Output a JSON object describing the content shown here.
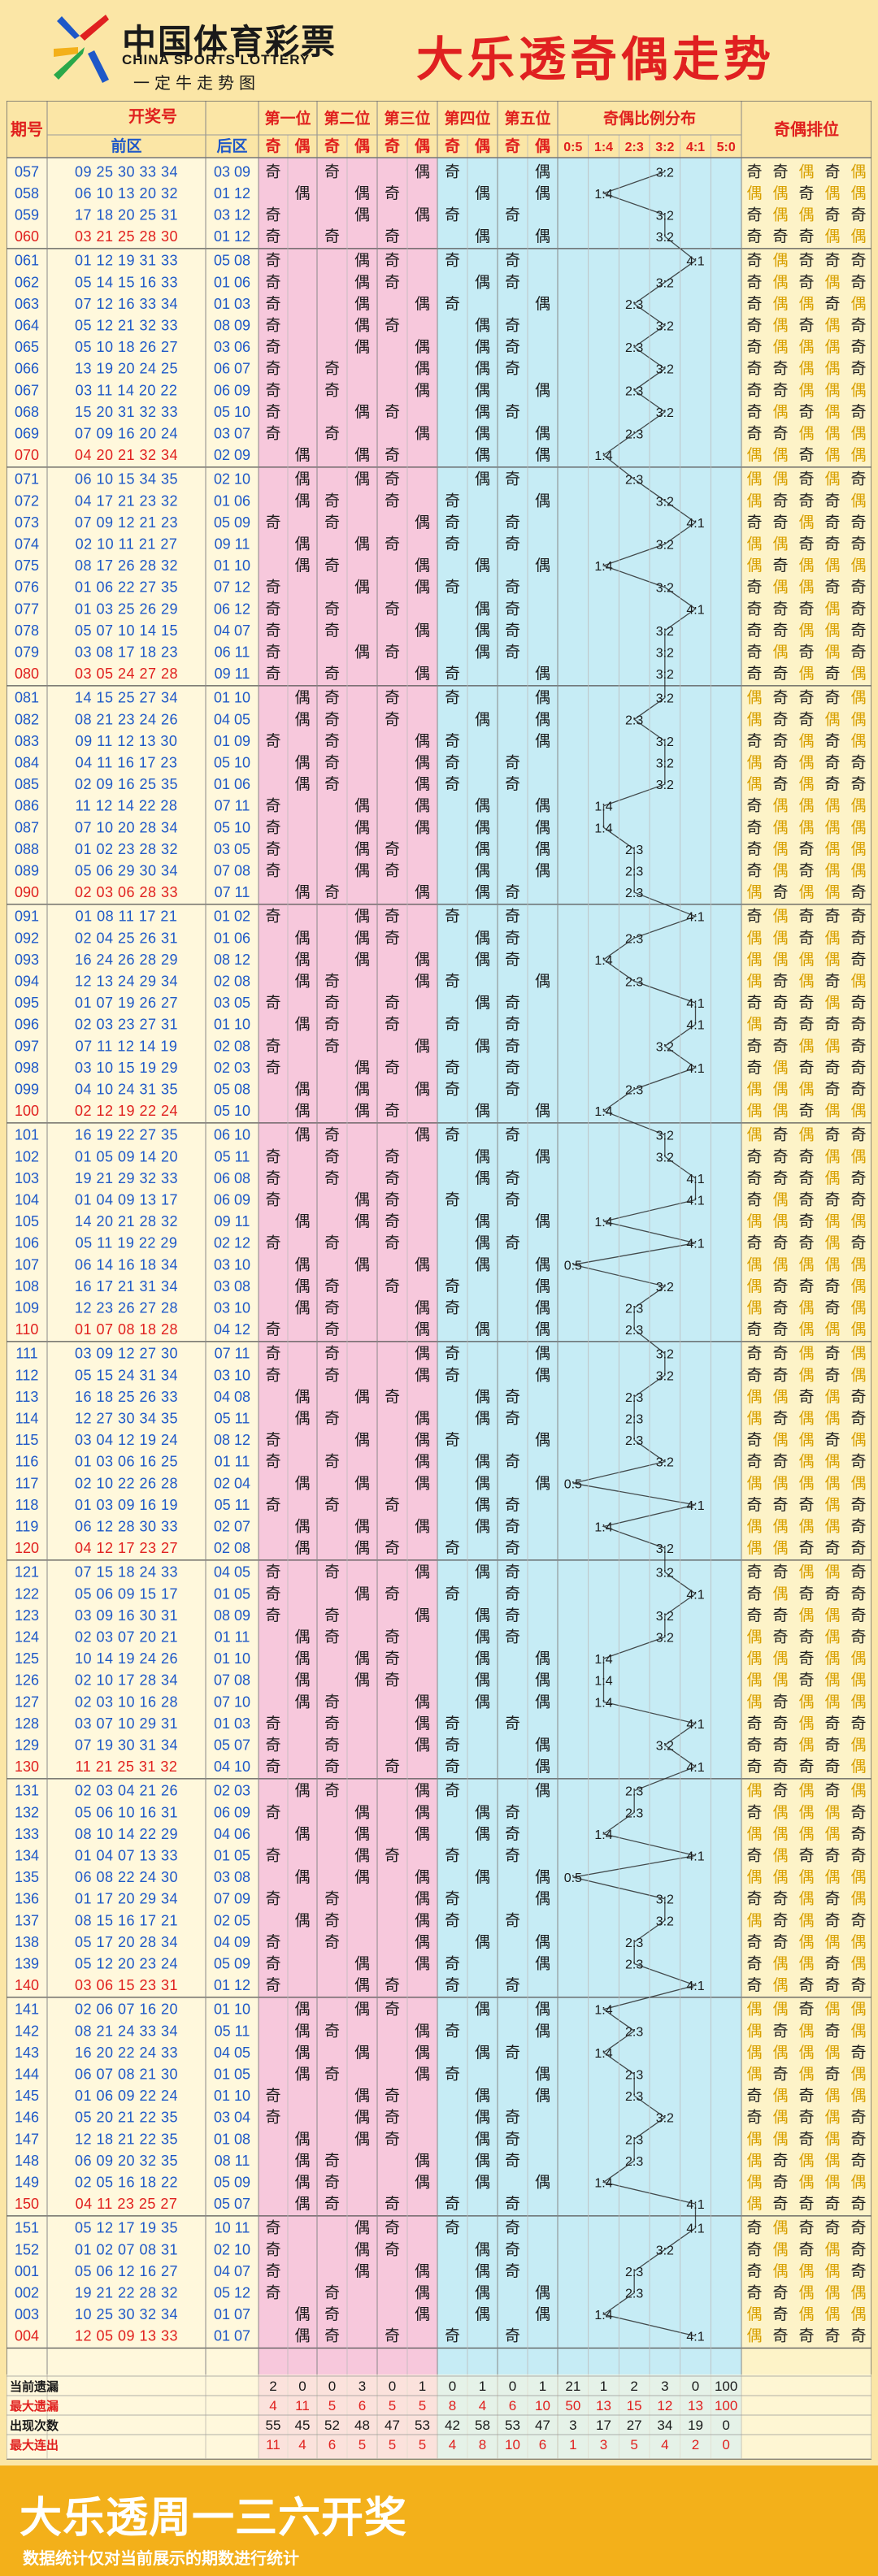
{
  "header": {
    "logo_cn": "中国体育彩票",
    "logo_en": "CHINA SPORTS LOTTERY",
    "slogan": "一定牛走势图",
    "title": "大乐透奇偶走势"
  },
  "table": {
    "col_issue": "期号",
    "col_draw": "开奖号",
    "col_front": "前区",
    "col_back": "后区",
    "positions": [
      "第一位",
      "第二位",
      "第三位",
      "第四位",
      "第五位"
    ],
    "odd": "奇",
    "even": "偶",
    "col_ratio": "奇偶比例分布",
    "ratios": [
      "0:5",
      "1:4",
      "2:3",
      "3:2",
      "4:1",
      "5:0"
    ],
    "col_order": "奇偶排位"
  },
  "chart_data": {
    "type": "table",
    "draws": [
      [
        "057",
        "09 25 30 33 34",
        "03 09"
      ],
      [
        "058",
        "06 10 13 20 32",
        "01 12"
      ],
      [
        "059",
        "17 18 20 25 31",
        "03 12"
      ],
      [
        "060",
        "03 21 25 28 30",
        "01 12"
      ],
      [
        "061",
        "01 12 19 31 33",
        "05 08"
      ],
      [
        "062",
        "05 14 15 16 33",
        "01 06"
      ],
      [
        "063",
        "07 12 16 33 34",
        "01 03"
      ],
      [
        "064",
        "05 12 21 32 33",
        "08 09"
      ],
      [
        "065",
        "05 10 18 26 27",
        "03 06"
      ],
      [
        "066",
        "13 19 20 24 25",
        "06 07"
      ],
      [
        "067",
        "03 11 14 20 22",
        "06 09"
      ],
      [
        "068",
        "15 20 31 32 33",
        "05 10"
      ],
      [
        "069",
        "07 09 16 20 24",
        "03 07"
      ],
      [
        "070",
        "04 20 21 32 34",
        "02 09"
      ],
      [
        "071",
        "06 10 15 34 35",
        "02 10"
      ],
      [
        "072",
        "04 17 21 23 32",
        "01 06"
      ],
      [
        "073",
        "07 09 12 21 23",
        "05 09"
      ],
      [
        "074",
        "02 10 11 21 27",
        "09 11"
      ],
      [
        "075",
        "08 17 26 28 32",
        "01 10"
      ],
      [
        "076",
        "01 06 22 27 35",
        "07 12"
      ],
      [
        "077",
        "01 03 25 26 29",
        "06 12"
      ],
      [
        "078",
        "05 07 10 14 15",
        "04 07"
      ],
      [
        "079",
        "03 08 17 18 23",
        "06 11"
      ],
      [
        "080",
        "03 05 24 27 28",
        "09 11"
      ],
      [
        "081",
        "14 15 25 27 34",
        "01 10"
      ],
      [
        "082",
        "08 21 23 24 26",
        "04 05"
      ],
      [
        "083",
        "09 11 12 13 30",
        "01 09"
      ],
      [
        "084",
        "04 11 16 17 23",
        "05 10"
      ],
      [
        "085",
        "02 09 16 25 35",
        "01 06"
      ],
      [
        "086",
        "11 12 14 22 28",
        "07 11"
      ],
      [
        "087",
        "07 10 20 28 34",
        "05 10"
      ],
      [
        "088",
        "01 02 23 28 32",
        "03 05"
      ],
      [
        "089",
        "05 06 29 30 34",
        "07 08"
      ],
      [
        "090",
        "02 03 06 28 33",
        "07 11"
      ],
      [
        "091",
        "01 08 11 17 21",
        "01 02"
      ],
      [
        "092",
        "02 04 25 26 31",
        "01 06"
      ],
      [
        "093",
        "16 24 26 28 29",
        "08 12"
      ],
      [
        "094",
        "12 13 24 29 34",
        "02 08"
      ],
      [
        "095",
        "01 07 19 26 27",
        "03 05"
      ],
      [
        "096",
        "02 03 23 27 31",
        "01 10"
      ],
      [
        "097",
        "07 11 12 14 19",
        "02 08"
      ],
      [
        "098",
        "03 10 15 19 29",
        "02 03"
      ],
      [
        "099",
        "04 10 24 31 35",
        "05 08"
      ],
      [
        "100",
        "02 12 19 22 24",
        "05 10"
      ],
      [
        "101",
        "16 19 22 27 35",
        "06 10"
      ],
      [
        "102",
        "01 05 09 14 20",
        "05 11"
      ],
      [
        "103",
        "19 21 29 32 33",
        "06 08"
      ],
      [
        "104",
        "01 04 09 13 17",
        "06 09"
      ],
      [
        "105",
        "14 20 21 28 32",
        "09 11"
      ],
      [
        "106",
        "05 11 19 22 29",
        "02 12"
      ],
      [
        "107",
        "06 14 16 18 34",
        "03 10"
      ],
      [
        "108",
        "16 17 21 31 34",
        "03 08"
      ],
      [
        "109",
        "12 23 26 27 28",
        "03 10"
      ],
      [
        "110",
        "01 07 08 18 28",
        "04 12"
      ],
      [
        "111",
        "03 09 12 27 30",
        "07 11"
      ],
      [
        "112",
        "05 15 24 31 34",
        "03 10"
      ],
      [
        "113",
        "16 18 25 26 33",
        "04 08"
      ],
      [
        "114",
        "12 27 30 34 35",
        "05 11"
      ],
      [
        "115",
        "03 04 12 19 24",
        "08 12"
      ],
      [
        "116",
        "01 03 06 16 25",
        "01 11"
      ],
      [
        "117",
        "02 10 22 26 28",
        "02 04"
      ],
      [
        "118",
        "01 03 09 16 19",
        "05 11"
      ],
      [
        "119",
        "06 12 28 30 33",
        "02 07"
      ],
      [
        "120",
        "04 12 17 23 27",
        "02 08"
      ],
      [
        "121",
        "07 15 18 24 33",
        "04 05"
      ],
      [
        "122",
        "05 06 09 15 17",
        "01 05"
      ],
      [
        "123",
        "03 09 16 30 31",
        "08 09"
      ],
      [
        "124",
        "02 03 07 20 21",
        "01 11"
      ],
      [
        "125",
        "10 14 19 24 26",
        "01 10"
      ],
      [
        "126",
        "02 10 17 28 34",
        "07 08"
      ],
      [
        "127",
        "02 03 10 16 28",
        "07 10"
      ],
      [
        "128",
        "03 07 10 29 31",
        "01 03"
      ],
      [
        "129",
        "07 19 30 31 34",
        "05 07"
      ],
      [
        "130",
        "11 21 25 31 32",
        "04 10"
      ],
      [
        "131",
        "02 03 04 21 26",
        "02 03"
      ],
      [
        "132",
        "05 06 10 16 31",
        "06 09"
      ],
      [
        "133",
        "08 10 14 22 29",
        "04 06"
      ],
      [
        "134",
        "01 04 07 13 33",
        "01 05"
      ],
      [
        "135",
        "06 08 22 24 30",
        "03 08"
      ],
      [
        "136",
        "01 17 20 29 34",
        "07 09"
      ],
      [
        "137",
        "08 15 16 17 21",
        "02 05"
      ],
      [
        "138",
        "05 17 20 28 34",
        "04 09"
      ],
      [
        "139",
        "05 12 20 23 24",
        "05 09"
      ],
      [
        "140",
        "03 06 15 23 31",
        "01 12"
      ],
      [
        "141",
        "02 06 07 16 20",
        "01 10"
      ],
      [
        "142",
        "08 21 24 33 34",
        "05 11"
      ],
      [
        "143",
        "16 20 22 24 33",
        "04 05"
      ],
      [
        "144",
        "06 07 08 21 30",
        "01 05"
      ],
      [
        "145",
        "01 06 09 22 24",
        "01 10"
      ],
      [
        "146",
        "05 20 21 22 35",
        "03 04"
      ],
      [
        "147",
        "12 18 21 22 35",
        "01 08"
      ],
      [
        "148",
        "06 09 20 32 35",
        "08 11"
      ],
      [
        "149",
        "02 05 16 18 22",
        "05 09"
      ],
      [
        "150",
        "04 11 23 25 27",
        "05 07"
      ],
      [
        "151",
        "05 12 17 19 35",
        "10 11"
      ],
      [
        "152",
        "01 02 07 08 31",
        "02 10"
      ],
      [
        "001",
        "05 06 12 16 27",
        "04 07"
      ],
      [
        "002",
        "19 21 22 28 32",
        "05 12"
      ],
      [
        "003",
        "10 25 30 32 34",
        "01 07"
      ],
      [
        "004",
        "12 05 09 13 33",
        "01 07"
      ]
    ]
  },
  "stats": {
    "labels": [
      "当前遗漏",
      "最大遗漏",
      "出现次数",
      "最大连出"
    ],
    "rows": [
      [
        "2",
        "0",
        "0",
        "3",
        "0",
        "1",
        "0",
        "1",
        "0",
        "1",
        "21",
        "1",
        "2",
        "3",
        "0",
        "100"
      ],
      [
        "4",
        "11",
        "5",
        "6",
        "5",
        "5",
        "8",
        "4",
        "6",
        "10",
        "50",
        "13",
        "15",
        "12",
        "13",
        "100"
      ],
      [
        "55",
        "45",
        "52",
        "48",
        "47",
        "53",
        "42",
        "58",
        "53",
        "47",
        "3",
        "17",
        "27",
        "34",
        "19",
        "0"
      ],
      [
        "11",
        "4",
        "6",
        "5",
        "5",
        "5",
        "4",
        "8",
        "10",
        "6",
        "1",
        "3",
        "5",
        "4",
        "2",
        "0"
      ]
    ],
    "label_colors": [
      "#1a1a1a",
      "#e0201e",
      "#1a1a1a",
      "#e0201e"
    ]
  },
  "footer": {
    "title": "大乐透周一三六开奖",
    "note": "数据统计仅对当前展示的期数进行统计"
  },
  "colors": {
    "blue": "#1e58c8",
    "red": "#e0201e",
    "pink": "#f7c8dc",
    "cyan": "#c6ecf5",
    "yellow": "#fbe6a6",
    "orange": "#f3b01a",
    "gold": "#d8a000"
  }
}
